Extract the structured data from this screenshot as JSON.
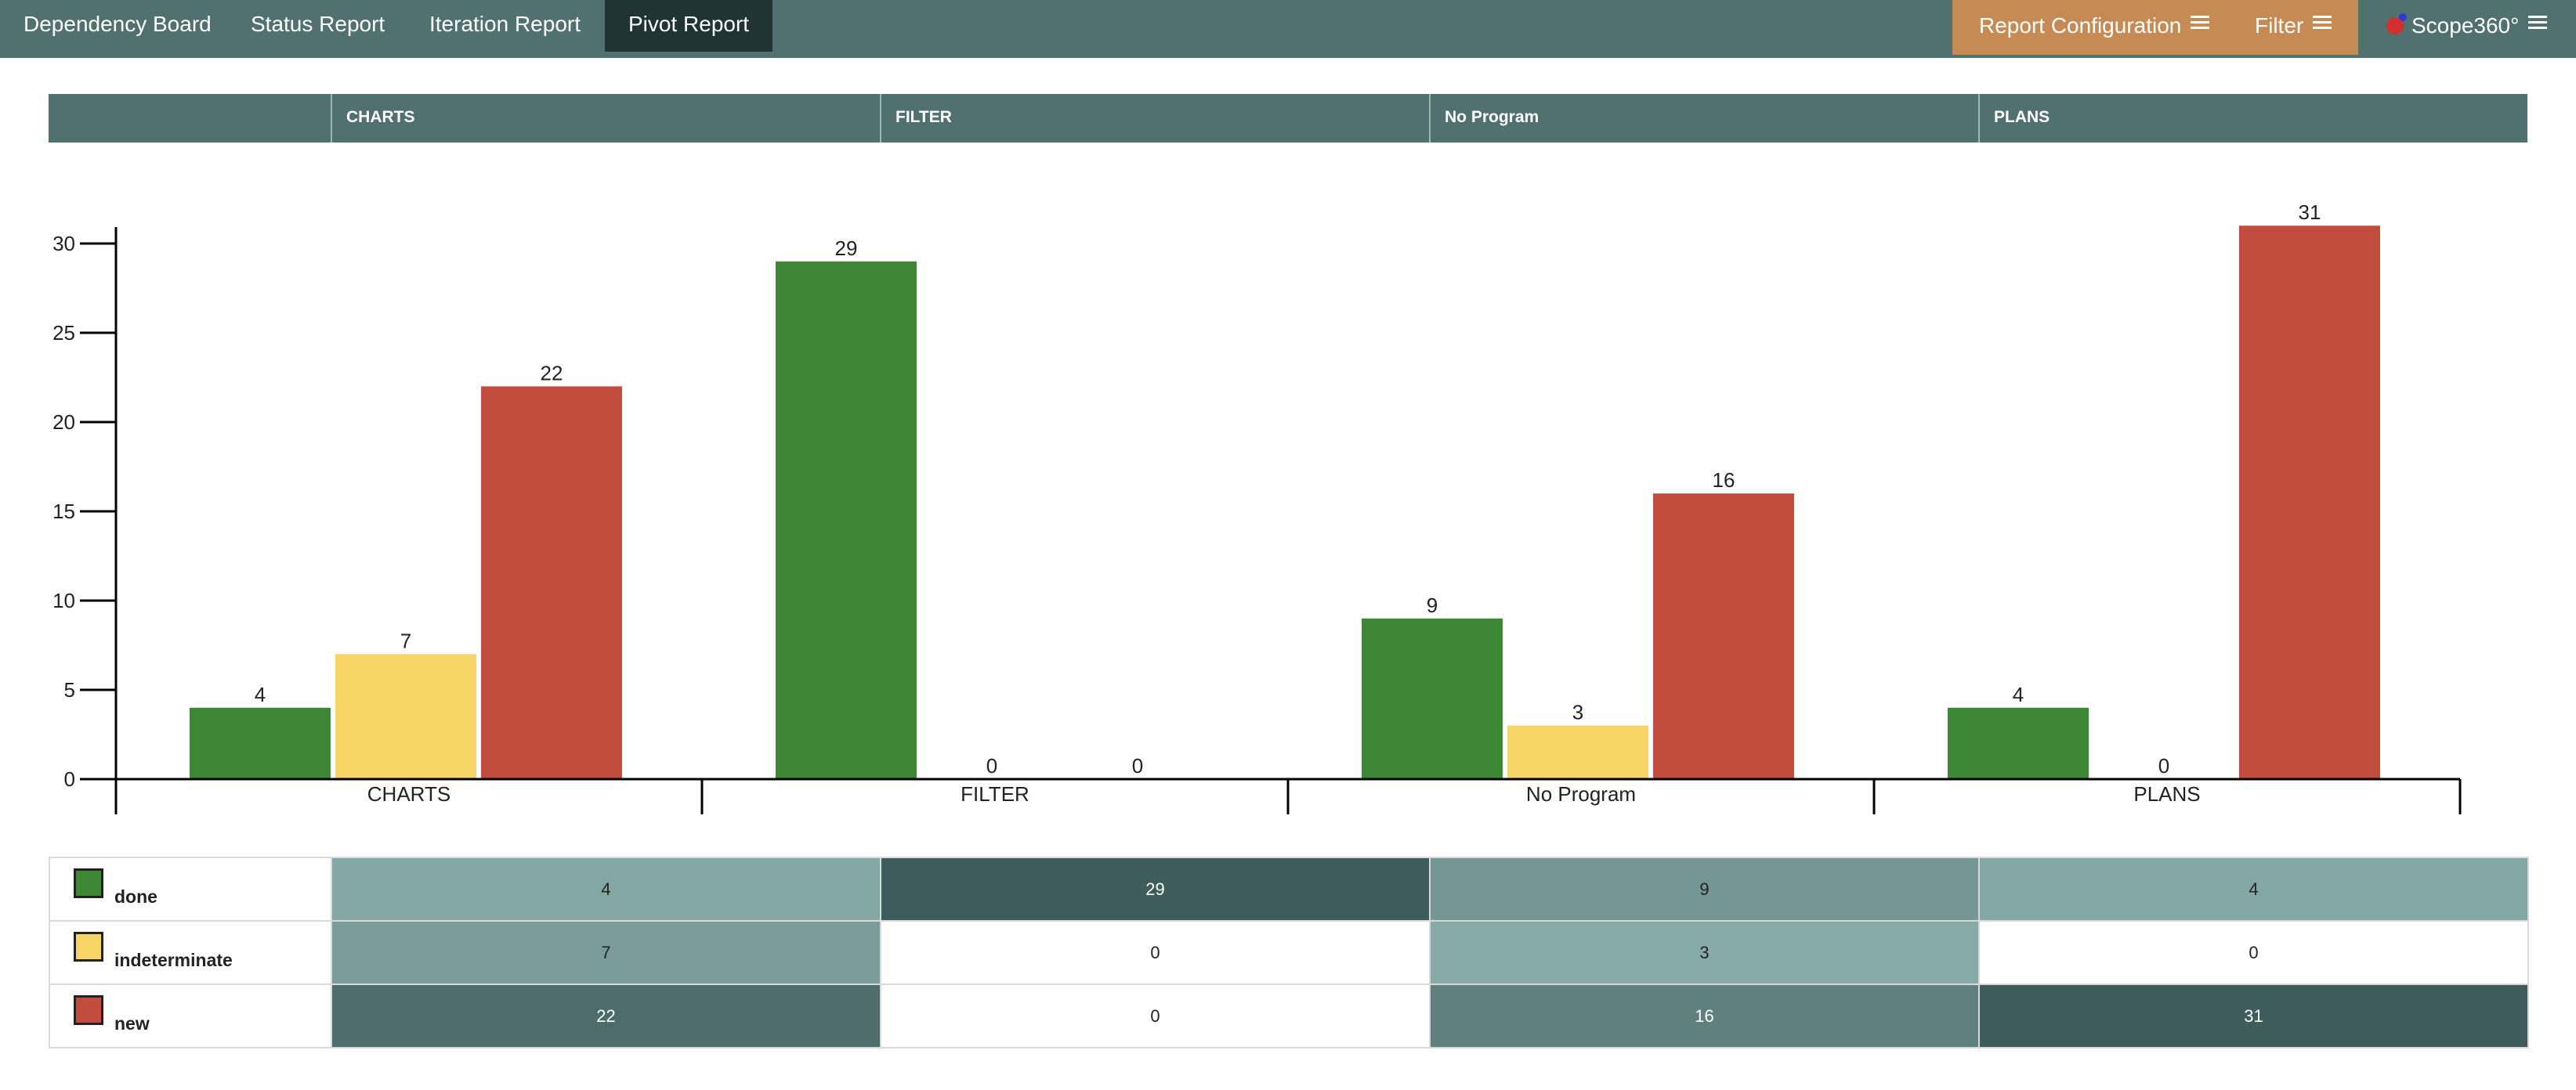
{
  "nav": {
    "tabs": [
      "Dependency Board",
      "Status Report",
      "Iteration Report",
      "Pivot Report"
    ],
    "active": "Pivot Report",
    "report_configuration": "Report Configuration",
    "filter": "Filter",
    "app_name": "Scope360°"
  },
  "header": {
    "columns": [
      "",
      "CHARTS",
      "FILTER",
      "No Program",
      "PLANS"
    ]
  },
  "chart_data": {
    "type": "bar",
    "categories": [
      "CHARTS",
      "FILTER",
      "No Program",
      "PLANS"
    ],
    "series": [
      {
        "name": "done",
        "values": [
          4,
          29,
          9,
          4
        ],
        "color": "#3d8736"
      },
      {
        "name": "indeterminate",
        "values": [
          7,
          0,
          3,
          0
        ],
        "color": "#f7d466"
      },
      {
        "name": "new",
        "values": [
          22,
          0,
          16,
          31
        ],
        "color": "#c24c3e"
      }
    ],
    "ylim": [
      0,
      31
    ],
    "yticks": [
      0,
      5,
      10,
      15,
      20,
      25,
      30
    ],
    "grid": false,
    "legend": "table-below"
  },
  "table": {
    "rows": [
      {
        "label": "done",
        "color": "#3d8736",
        "values": [
          4,
          29,
          9,
          4
        ]
      },
      {
        "label": "indeterminate",
        "color": "#f7d466",
        "values": [
          7,
          0,
          3,
          0
        ]
      },
      {
        "label": "new",
        "color": "#c24c3e",
        "values": [
          22,
          0,
          16,
          31
        ]
      }
    ]
  }
}
